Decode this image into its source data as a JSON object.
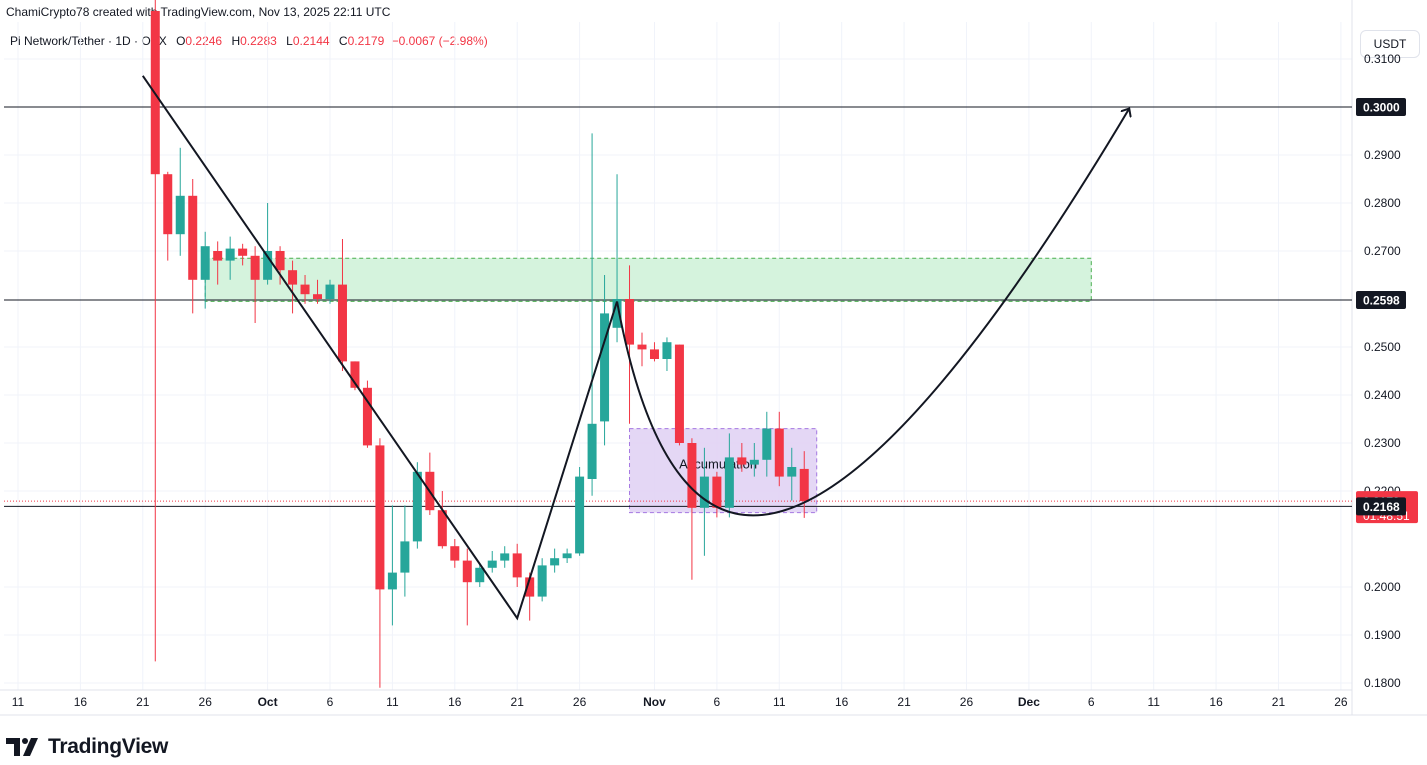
{
  "header": {
    "attribution": "ChamiCrypto78 created with TradingView.com, Nov 13, 2025 22:11 UTC"
  },
  "legend": {
    "symbol": "Pi Network/Tether · 1D · OKX",
    "o_label": "O",
    "o_value": "0.2246",
    "h_label": "H",
    "h_value": "0.2283",
    "l_label": "L",
    "l_value": "0.2144",
    "c_label": "C",
    "c_value": "0.2179",
    "change": "−0.0067 (−2.98%)"
  },
  "currency_button": "USDT",
  "brand": {
    "name": "TradingView"
  },
  "colors": {
    "up": "#26a69a",
    "down": "#f23645",
    "grid": "#f0f3fa",
    "resistance_zone": "#d5f3dd",
    "accumulation_zone": "#e2d3f5",
    "line": "#131722"
  },
  "chart_data": {
    "type": "candlestick",
    "title": "",
    "xlabel": "",
    "ylabel": "",
    "y_ticks": [
      "0.3100",
      "0.2900",
      "0.2800",
      "0.2700",
      "0.2500",
      "0.2400",
      "0.2300",
      "0.2200",
      "0.2000",
      "0.1900",
      "0.1800"
    ],
    "ylim": [
      0.1775,
      0.313
    ],
    "x_ticks": [
      {
        "label": "11",
        "date": "2025-09-11"
      },
      {
        "label": "16",
        "date": "2025-09-16"
      },
      {
        "label": "21",
        "date": "2025-09-21"
      },
      {
        "label": "26",
        "date": "2025-09-26"
      },
      {
        "label": "Oct",
        "date": "2025-10-01"
      },
      {
        "label": "6",
        "date": "2025-10-06"
      },
      {
        "label": "11",
        "date": "2025-10-11"
      },
      {
        "label": "16",
        "date": "2025-10-16"
      },
      {
        "label": "21",
        "date": "2025-10-21"
      },
      {
        "label": "26",
        "date": "2025-10-26"
      },
      {
        "label": "Nov",
        "date": "2025-11-01"
      },
      {
        "label": "6",
        "date": "2025-11-06"
      },
      {
        "label": "11",
        "date": "2025-11-11"
      },
      {
        "label": "16",
        "date": "2025-11-16"
      },
      {
        "label": "21",
        "date": "2025-11-21"
      },
      {
        "label": "26",
        "date": "2025-11-26"
      },
      {
        "label": "Dec",
        "date": "2025-12-01"
      },
      {
        "label": "6",
        "date": "2025-12-06"
      },
      {
        "label": "11",
        "date": "2025-12-11"
      },
      {
        "label": "16",
        "date": "2025-12-16"
      },
      {
        "label": "21",
        "date": "2025-12-21"
      },
      {
        "label": "26",
        "date": "2025-12-26"
      }
    ],
    "candles": [
      {
        "date": "2025-09-22",
        "o": 0.32,
        "h": 0.324,
        "l": 0.1845,
        "c": 0.286
      },
      {
        "date": "2025-09-23",
        "o": 0.286,
        "h": 0.2865,
        "l": 0.268,
        "c": 0.2735
      },
      {
        "date": "2025-09-24",
        "o": 0.2735,
        "h": 0.2915,
        "l": 0.269,
        "c": 0.2815
      },
      {
        "date": "2025-09-25",
        "o": 0.2815,
        "h": 0.285,
        "l": 0.257,
        "c": 0.264
      },
      {
        "date": "2025-09-26",
        "o": 0.264,
        "h": 0.274,
        "l": 0.258,
        "c": 0.271
      },
      {
        "date": "2025-09-27",
        "o": 0.27,
        "h": 0.272,
        "l": 0.263,
        "c": 0.268
      },
      {
        "date": "2025-09-28",
        "o": 0.268,
        "h": 0.273,
        "l": 0.264,
        "c": 0.2705
      },
      {
        "date": "2025-09-29",
        "o": 0.2705,
        "h": 0.2715,
        "l": 0.267,
        "c": 0.269
      },
      {
        "date": "2025-09-30",
        "o": 0.269,
        "h": 0.271,
        "l": 0.255,
        "c": 0.264
      },
      {
        "date": "2025-10-01",
        "o": 0.264,
        "h": 0.28,
        "l": 0.263,
        "c": 0.27
      },
      {
        "date": "2025-10-02",
        "o": 0.27,
        "h": 0.271,
        "l": 0.263,
        "c": 0.266
      },
      {
        "date": "2025-10-03",
        "o": 0.266,
        "h": 0.268,
        "l": 0.257,
        "c": 0.263
      },
      {
        "date": "2025-10-04",
        "o": 0.263,
        "h": 0.265,
        "l": 0.259,
        "c": 0.261
      },
      {
        "date": "2025-10-05",
        "o": 0.261,
        "h": 0.264,
        "l": 0.259,
        "c": 0.26
      },
      {
        "date": "2025-10-06",
        "o": 0.26,
        "h": 0.264,
        "l": 0.259,
        "c": 0.263
      },
      {
        "date": "2025-10-07",
        "o": 0.263,
        "h": 0.2725,
        "l": 0.245,
        "c": 0.247
      },
      {
        "date": "2025-10-08",
        "o": 0.247,
        "h": 0.247,
        "l": 0.241,
        "c": 0.2415
      },
      {
        "date": "2025-10-09",
        "o": 0.2415,
        "h": 0.243,
        "l": 0.229,
        "c": 0.2295
      },
      {
        "date": "2025-10-10",
        "o": 0.2295,
        "h": 0.231,
        "l": 0.179,
        "c": 0.1995
      },
      {
        "date": "2025-10-11",
        "o": 0.1995,
        "h": 0.217,
        "l": 0.192,
        "c": 0.203
      },
      {
        "date": "2025-10-12",
        "o": 0.203,
        "h": 0.217,
        "l": 0.198,
        "c": 0.2095
      },
      {
        "date": "2025-10-13",
        "o": 0.2095,
        "h": 0.226,
        "l": 0.208,
        "c": 0.224
      },
      {
        "date": "2025-10-14",
        "o": 0.224,
        "h": 0.228,
        "l": 0.215,
        "c": 0.216
      },
      {
        "date": "2025-10-15",
        "o": 0.216,
        "h": 0.22,
        "l": 0.208,
        "c": 0.2085
      },
      {
        "date": "2025-10-16",
        "o": 0.2085,
        "h": 0.21,
        "l": 0.204,
        "c": 0.2055
      },
      {
        "date": "2025-10-17",
        "o": 0.2055,
        "h": 0.208,
        "l": 0.192,
        "c": 0.201
      },
      {
        "date": "2025-10-18",
        "o": 0.201,
        "h": 0.205,
        "l": 0.2,
        "c": 0.204
      },
      {
        "date": "2025-10-19",
        "o": 0.204,
        "h": 0.2075,
        "l": 0.203,
        "c": 0.2055
      },
      {
        "date": "2025-10-20",
        "o": 0.2055,
        "h": 0.2085,
        "l": 0.204,
        "c": 0.207
      },
      {
        "date": "2025-10-21",
        "o": 0.207,
        "h": 0.209,
        "l": 0.2,
        "c": 0.202
      },
      {
        "date": "2025-10-22",
        "o": 0.202,
        "h": 0.203,
        "l": 0.193,
        "c": 0.198
      },
      {
        "date": "2025-10-23",
        "o": 0.198,
        "h": 0.206,
        "l": 0.197,
        "c": 0.2045
      },
      {
        "date": "2025-10-24",
        "o": 0.2045,
        "h": 0.208,
        "l": 0.203,
        "c": 0.206
      },
      {
        "date": "2025-10-25",
        "o": 0.206,
        "h": 0.208,
        "l": 0.205,
        "c": 0.207
      },
      {
        "date": "2025-10-26",
        "o": 0.207,
        "h": 0.225,
        "l": 0.2065,
        "c": 0.223
      },
      {
        "date": "2025-10-27",
        "o": 0.2225,
        "h": 0.2945,
        "l": 0.219,
        "c": 0.234
      },
      {
        "date": "2025-10-28",
        "o": 0.2345,
        "h": 0.265,
        "l": 0.2295,
        "c": 0.257
      },
      {
        "date": "2025-10-29",
        "o": 0.254,
        "h": 0.286,
        "l": 0.251,
        "c": 0.26
      },
      {
        "date": "2025-10-30",
        "o": 0.26,
        "h": 0.267,
        "l": 0.234,
        "c": 0.2505
      },
      {
        "date": "2025-10-31",
        "o": 0.2505,
        "h": 0.253,
        "l": 0.246,
        "c": 0.2495
      },
      {
        "date": "2025-11-01",
        "o": 0.2495,
        "h": 0.251,
        "l": 0.247,
        "c": 0.2475
      },
      {
        "date": "2025-11-02",
        "o": 0.2475,
        "h": 0.252,
        "l": 0.245,
        "c": 0.251
      },
      {
        "date": "2025-11-03",
        "o": 0.2505,
        "h": 0.2505,
        "l": 0.2295,
        "c": 0.23
      },
      {
        "date": "2025-11-04",
        "o": 0.23,
        "h": 0.231,
        "l": 0.2015,
        "c": 0.2165
      },
      {
        "date": "2025-11-05",
        "o": 0.2165,
        "h": 0.229,
        "l": 0.2065,
        "c": 0.223
      },
      {
        "date": "2025-11-06",
        "o": 0.223,
        "h": 0.224,
        "l": 0.2145,
        "c": 0.2165
      },
      {
        "date": "2025-11-07",
        "o": 0.2165,
        "h": 0.232,
        "l": 0.2145,
        "c": 0.227
      },
      {
        "date": "2025-11-08",
        "o": 0.227,
        "h": 0.23,
        "l": 0.224,
        "c": 0.2255
      },
      {
        "date": "2025-11-09",
        "o": 0.2255,
        "h": 0.23,
        "l": 0.223,
        "c": 0.2265
      },
      {
        "date": "2025-11-10",
        "o": 0.2265,
        "h": 0.2365,
        "l": 0.223,
        "c": 0.233
      },
      {
        "date": "2025-11-11",
        "o": 0.233,
        "h": 0.2365,
        "l": 0.221,
        "c": 0.223
      },
      {
        "date": "2025-11-12",
        "o": 0.223,
        "h": 0.229,
        "l": 0.218,
        "c": 0.225
      },
      {
        "date": "2025-11-13",
        "o": 0.2246,
        "h": 0.2283,
        "l": 0.2144,
        "c": 0.2179
      }
    ],
    "price_labels": [
      {
        "value": "0.3000",
        "price": 0.3,
        "style": "dark"
      },
      {
        "value": "0.2598",
        "price": 0.2598,
        "style": "dark"
      },
      {
        "value": "0.2179",
        "price": 0.2179,
        "style": "red",
        "countdown": "01:48:51"
      },
      {
        "value": "0.2168",
        "price": 0.2168,
        "style": "dark"
      }
    ],
    "horizontal_lines": [
      0.3,
      0.2598,
      0.2168
    ],
    "current_price_line": 0.2179,
    "zones": [
      {
        "name": "resistance",
        "from_date": "2025-09-26",
        "to_date": "2025-12-06",
        "low": 0.2595,
        "high": 0.2685
      },
      {
        "name": "accumulation",
        "label": "Accumulation",
        "from_date": "2025-10-30",
        "to_date": "2025-11-14",
        "low": 0.2155,
        "high": 0.233
      }
    ],
    "drawing_paths": [
      {
        "name": "downtrend-line",
        "points": [
          [
            "2025-09-21",
            0.3065
          ],
          [
            "2025-10-21",
            0.1935
          ],
          [
            "2025-10-29",
            0.2595
          ]
        ]
      },
      {
        "name": "projection-curve",
        "points": [
          [
            "2025-10-29",
            0.2595
          ],
          [
            "2025-11-12",
            0.2165
          ],
          [
            "2025-12-09",
            0.2995
          ]
        ],
        "arrow": true
      }
    ]
  }
}
